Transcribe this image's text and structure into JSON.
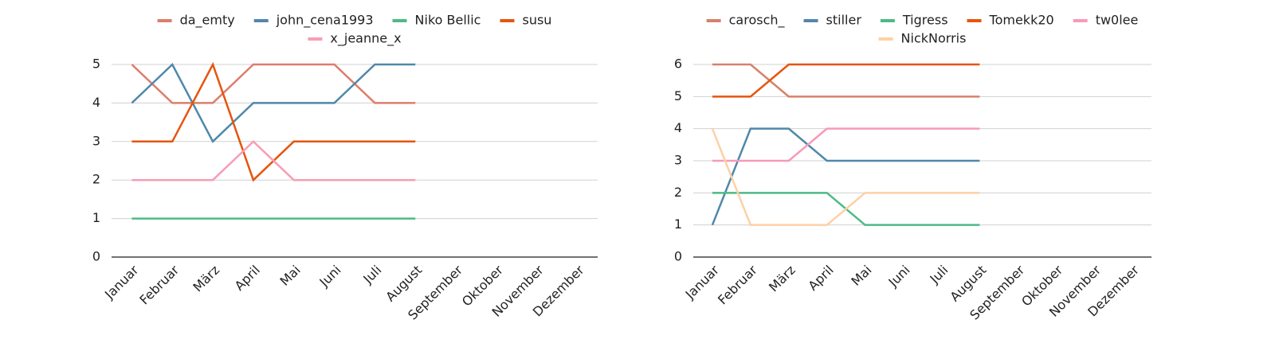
{
  "chart_data": [
    {
      "type": "line",
      "categories": [
        "Januar",
        "Februar",
        "März",
        "April",
        "Mai",
        "Juni",
        "Juli",
        "August",
        "September",
        "Oktober",
        "November",
        "Dezember"
      ],
      "series": [
        {
          "name": "da_emty",
          "color": "#dd7d6b",
          "values": [
            5,
            4,
            4,
            5,
            5,
            5,
            4,
            4,
            null,
            null,
            null,
            null
          ]
        },
        {
          "name": "john_cena1993",
          "color": "#4f88aa",
          "values": [
            4,
            5,
            3,
            4,
            4,
            4,
            5,
            5,
            null,
            null,
            null,
            null
          ]
        },
        {
          "name": "Niko Bellic",
          "color": "#4dba86",
          "values": [
            1,
            1,
            1,
            1,
            1,
            1,
            1,
            1,
            null,
            null,
            null,
            null
          ]
        },
        {
          "name": "susu",
          "color": "#e6550d",
          "values": [
            3,
            3,
            5,
            2,
            3,
            3,
            3,
            3,
            null,
            null,
            null,
            null
          ]
        },
        {
          "name": "x_jeanne_x",
          "color": "#f89db6",
          "values": [
            2,
            2,
            2,
            3,
            2,
            2,
            2,
            2,
            null,
            null,
            null,
            null
          ]
        }
      ],
      "ylim": [
        0,
        5
      ],
      "yticks": [
        0,
        1,
        2,
        3,
        4,
        5
      ],
      "grid": true
    },
    {
      "type": "line",
      "categories": [
        "Januar",
        "Februar",
        "März",
        "April",
        "Mai",
        "Juni",
        "Juli",
        "August",
        "September",
        "Oktober",
        "November",
        "Dezember"
      ],
      "series": [
        {
          "name": "carosch_",
          "color": "#d6816b",
          "values": [
            6,
            6,
            5,
            5,
            5,
            5,
            5,
            5,
            null,
            null,
            null,
            null
          ]
        },
        {
          "name": "stiller",
          "color": "#4f88aa",
          "values": [
            1,
            4,
            4,
            3,
            3,
            3,
            3,
            3,
            null,
            null,
            null,
            null
          ]
        },
        {
          "name": "Tigress",
          "color": "#4dba86",
          "values": [
            2,
            2,
            2,
            2,
            1,
            1,
            1,
            1,
            null,
            null,
            null,
            null
          ]
        },
        {
          "name": "Tomekk20",
          "color": "#e6550d",
          "values": [
            5,
            5,
            6,
            6,
            6,
            6,
            6,
            6,
            null,
            null,
            null,
            null
          ]
        },
        {
          "name": "tw0lee",
          "color": "#f79ab7",
          "values": [
            3,
            3,
            3,
            4,
            4,
            4,
            4,
            4,
            null,
            null,
            null,
            null
          ]
        },
        {
          "name": "NickNorris",
          "color": "#fdd0a5",
          "values": [
            4,
            1,
            1,
            1,
            2,
            2,
            2,
            2,
            null,
            null,
            null,
            null
          ]
        }
      ],
      "ylim": [
        0,
        6
      ],
      "yticks": [
        0,
        1,
        2,
        3,
        4,
        5,
        6
      ],
      "grid": true
    }
  ]
}
